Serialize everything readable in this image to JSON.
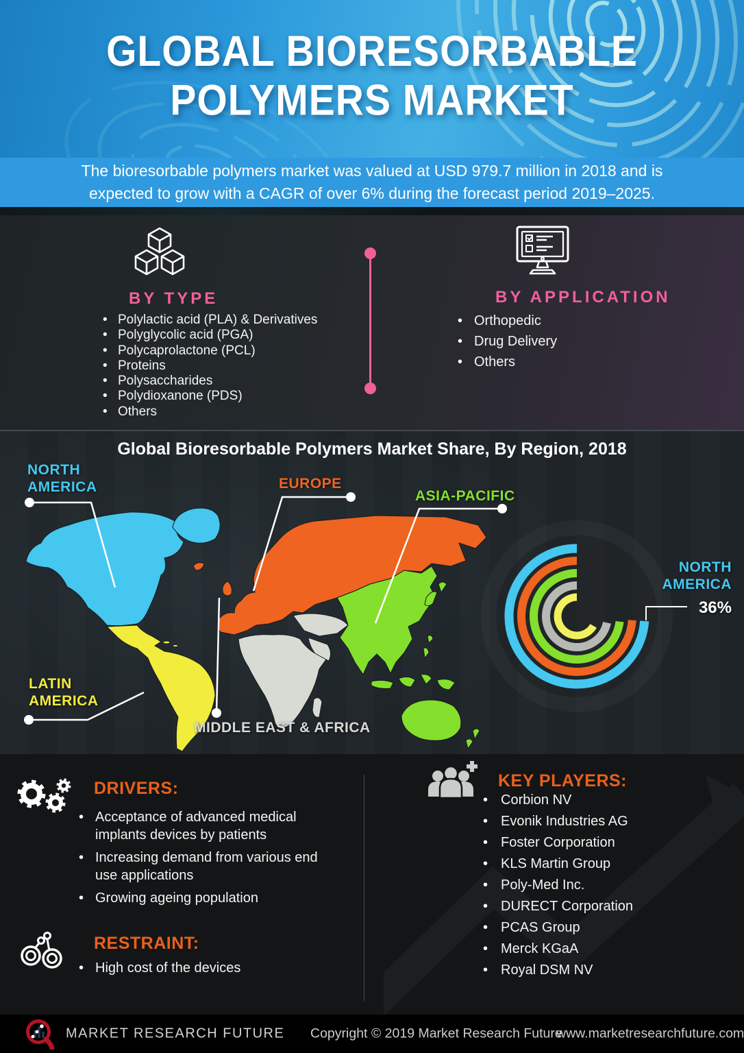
{
  "header": {
    "title_line1": "GLOBAL BIORESORBABLE",
    "title_line2": "POLYMERS MARKET",
    "subtitle_line1": "The bioresorbable polymers market was valued at USD 979.7 million in 2018 and is",
    "subtitle_line2": "expected to grow with a CAGR of over 6% during the forecast period 2019–2025."
  },
  "by_type": {
    "heading": "BY TYPE",
    "icon": "cubes-icon",
    "items": [
      "Polylactic acid (PLA) & Derivatives",
      "Polyglycolic acid (PGA)",
      "Polycaprolactone (PCL)",
      "Proteins",
      "Polysaccharides",
      "Polydioxanone (PDS)",
      "Others"
    ]
  },
  "by_application": {
    "heading": "BY APPLICATION",
    "icon": "monitor-checklist-icon",
    "items": [
      "Orthopedic",
      "Drug Delivery",
      "Others"
    ]
  },
  "map_section": {
    "title": "Global Bioresorbable Polymers Market Share, By Region, 2018",
    "labels": {
      "north_america_line1": "NORTH",
      "north_america_line2": "AMERICA",
      "europe": "EUROPE",
      "asia_pacific": "ASIA-PACIFIC",
      "latin_america_line1": "LATIN",
      "latin_america_line2": "AMERICA",
      "middle_east_africa": "MIDDLE EAST & AFRICA"
    },
    "region_colors": {
      "north_america": "#45C7F0",
      "europe": "#EE6420",
      "asia_pacific": "#84E02C",
      "latin_america": "#F2EC3D",
      "middle_east_africa": "#D8DAD4"
    },
    "callout": {
      "line1": "NORTH",
      "line2": "AMERICA",
      "value": "36%"
    }
  },
  "chart_data": {
    "type": "bar",
    "variant": "radial-concentric-rings",
    "title": "Global Bioresorbable Polymers Market Share, By Region, 2018",
    "categories": [
      "North America",
      "Europe",
      "Asia-Pacific",
      "Middle East & Africa",
      "Latin America"
    ],
    "values": [
      36,
      null,
      null,
      null,
      null
    ],
    "labeled_point": {
      "category": "North America",
      "value_pct": 36
    },
    "ring_order_outer_to_inner": [
      "North America",
      "Europe",
      "Asia-Pacific",
      "Middle East & Africa",
      "Latin America"
    ],
    "ring_colors": [
      "#45C7F0",
      "#EE6420",
      "#84E02C",
      "#B7BAB4",
      "#F3F05E"
    ],
    "legend_position": "map-labels"
  },
  "drivers": {
    "heading": "DRIVERS:",
    "icon": "gears-icon",
    "items": [
      "Acceptance of advanced medical implants devices by patients",
      "Increasing demand from various end use applications",
      "Growing ageing population"
    ]
  },
  "restraint": {
    "heading": "RESTRAINT:",
    "icon": "handcuffs-icon",
    "items": [
      "High cost of the devices"
    ]
  },
  "key_players": {
    "heading": "KEY PLAYERS:",
    "icon": "people-group-icon",
    "items": [
      "Corbion NV",
      "Evonik Industries AG",
      "Foster Corporation",
      "KLS Martin Group",
      "Poly-Med Inc.",
      "DURECT Corporation",
      "PCAS Group",
      "Merck KGaA",
      "Royal DSM NV"
    ]
  },
  "footer": {
    "brand": "MARKET RESEARCH FUTURE",
    "copyright": "Copyright © 2019 Market Research Future",
    "website": "www.marketresearchfuture.com"
  },
  "accent_colors": {
    "pink": "#F2609A",
    "orange_heading": "#E8611C",
    "band_blue": "#2F9AE0",
    "brand_red": "#B41425"
  }
}
